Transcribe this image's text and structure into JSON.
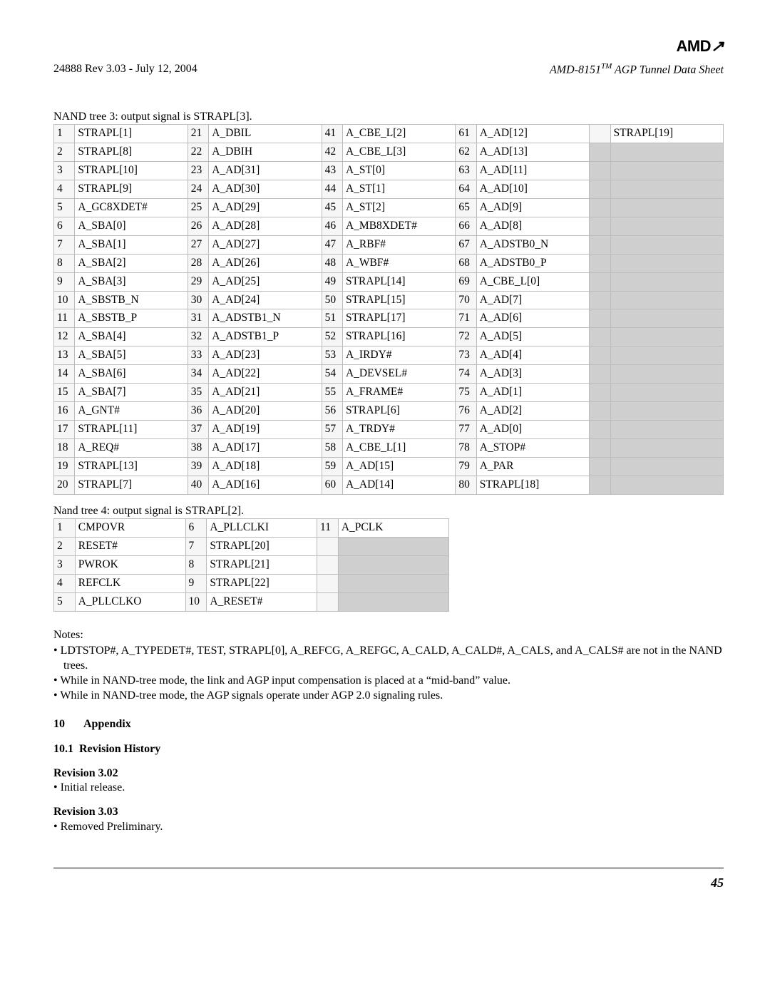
{
  "header": {
    "logo": "AMD",
    "rev": "24888 Rev 3.03 - July 12, 2004",
    "doc_prefix": "AMD-8151",
    "tm": "TM",
    "doc_suffix": " AGP Tunnel Data Sheet"
  },
  "table3": {
    "caption": "NAND tree 3: output signal is STRAPL[3].",
    "cols": 5,
    "rows": [
      [
        [
          "1",
          "STRAPL[1]"
        ],
        [
          "21",
          "A_DBIL"
        ],
        [
          "41",
          "A_CBE_L[2]"
        ],
        [
          "61",
          "A_AD[12]"
        ],
        [
          "",
          "STRAPL[19]"
        ]
      ],
      [
        [
          "2",
          "STRAPL[8]"
        ],
        [
          "22",
          "A_DBIH"
        ],
        [
          "42",
          "A_CBE_L[3]"
        ],
        [
          "62",
          "A_AD[13]"
        ],
        [
          "",
          ""
        ]
      ],
      [
        [
          "3",
          "STRAPL[10]"
        ],
        [
          "23",
          "A_AD[31]"
        ],
        [
          "43",
          "A_ST[0]"
        ],
        [
          "63",
          "A_AD[11]"
        ],
        [
          "",
          ""
        ]
      ],
      [
        [
          "4",
          "STRAPL[9]"
        ],
        [
          "24",
          "A_AD[30]"
        ],
        [
          "44",
          "A_ST[1]"
        ],
        [
          "64",
          "A_AD[10]"
        ],
        [
          "",
          ""
        ]
      ],
      [
        [
          "5",
          "A_GC8XDET#"
        ],
        [
          "25",
          "A_AD[29]"
        ],
        [
          "45",
          "A_ST[2]"
        ],
        [
          "65",
          "A_AD[9]"
        ],
        [
          "",
          ""
        ]
      ],
      [
        [
          "6",
          "A_SBA[0]"
        ],
        [
          "26",
          "A_AD[28]"
        ],
        [
          "46",
          "A_MB8XDET#"
        ],
        [
          "66",
          "A_AD[8]"
        ],
        [
          "",
          ""
        ]
      ],
      [
        [
          "7",
          "A_SBA[1]"
        ],
        [
          "27",
          "A_AD[27]"
        ],
        [
          "47",
          "A_RBF#"
        ],
        [
          "67",
          "A_ADSTB0_N"
        ],
        [
          "",
          ""
        ]
      ],
      [
        [
          "8",
          "A_SBA[2]"
        ],
        [
          "28",
          "A_AD[26]"
        ],
        [
          "48",
          "A_WBF#"
        ],
        [
          "68",
          "A_ADSTB0_P"
        ],
        [
          "",
          ""
        ]
      ],
      [
        [
          "9",
          "A_SBA[3]"
        ],
        [
          "29",
          "A_AD[25]"
        ],
        [
          "49",
          "STRAPL[14]"
        ],
        [
          "69",
          "A_CBE_L[0]"
        ],
        [
          "",
          ""
        ]
      ],
      [
        [
          "10",
          "A_SBSTB_N"
        ],
        [
          "30",
          "A_AD[24]"
        ],
        [
          "50",
          "STRAPL[15]"
        ],
        [
          "70",
          "A_AD[7]"
        ],
        [
          "",
          ""
        ]
      ],
      [
        [
          "11",
          "A_SBSTB_P"
        ],
        [
          "31",
          "A_ADSTB1_N"
        ],
        [
          "51",
          "STRAPL[17]"
        ],
        [
          "71",
          "A_AD[6]"
        ],
        [
          "",
          ""
        ]
      ],
      [
        [
          "12",
          "A_SBA[4]"
        ],
        [
          "32",
          "A_ADSTB1_P"
        ],
        [
          "52",
          "STRAPL[16]"
        ],
        [
          "72",
          "A_AD[5]"
        ],
        [
          "",
          ""
        ]
      ],
      [
        [
          "13",
          "A_SBA[5]"
        ],
        [
          "33",
          "A_AD[23]"
        ],
        [
          "53",
          "A_IRDY#"
        ],
        [
          "73",
          "A_AD[4]"
        ],
        [
          "",
          ""
        ]
      ],
      [
        [
          "14",
          "A_SBA[6]"
        ],
        [
          "34",
          "A_AD[22]"
        ],
        [
          "54",
          "A_DEVSEL#"
        ],
        [
          "74",
          "A_AD[3]"
        ],
        [
          "",
          ""
        ]
      ],
      [
        [
          "15",
          "A_SBA[7]"
        ],
        [
          "35",
          "A_AD[21]"
        ],
        [
          "55",
          "A_FRAME#"
        ],
        [
          "75",
          "A_AD[1]"
        ],
        [
          "",
          ""
        ]
      ],
      [
        [
          "16",
          "A_GNT#"
        ],
        [
          "36",
          "A_AD[20]"
        ],
        [
          "56",
          "STRAPL[6]"
        ],
        [
          "76",
          "A_AD[2]"
        ],
        [
          "",
          ""
        ]
      ],
      [
        [
          "17",
          "STRAPL[11]"
        ],
        [
          "37",
          "A_AD[19]"
        ],
        [
          "57",
          "A_TRDY#"
        ],
        [
          "77",
          "A_AD[0]"
        ],
        [
          "",
          ""
        ]
      ],
      [
        [
          "18",
          "A_REQ#"
        ],
        [
          "38",
          "A_AD[17]"
        ],
        [
          "58",
          "A_CBE_L[1]"
        ],
        [
          "78",
          "A_STOP#"
        ],
        [
          "",
          ""
        ]
      ],
      [
        [
          "19",
          "STRAPL[13]"
        ],
        [
          "39",
          "A_AD[18]"
        ],
        [
          "59",
          "A_AD[15]"
        ],
        [
          "79",
          "A_PAR"
        ],
        [
          "",
          ""
        ]
      ],
      [
        [
          "20",
          "STRAPL[7]"
        ],
        [
          "40",
          "A_AD[16]"
        ],
        [
          "60",
          "A_AD[14]"
        ],
        [
          "80",
          "STRAPL[18]"
        ],
        [
          "",
          ""
        ]
      ]
    ]
  },
  "table4": {
    "caption": "Nand tree 4: output signal is STRAPL[2].",
    "rows": [
      [
        [
          "1",
          "CMPOVR"
        ],
        [
          "6",
          "A_PLLCLKI"
        ],
        [
          "11",
          "A_PCLK"
        ]
      ],
      [
        [
          "2",
          "RESET#"
        ],
        [
          "7",
          "STRAPL[20]"
        ],
        [
          "",
          ""
        ]
      ],
      [
        [
          "3",
          "PWROK"
        ],
        [
          "8",
          "STRAPL[21]"
        ],
        [
          "",
          ""
        ]
      ],
      [
        [
          "4",
          "REFCLK"
        ],
        [
          "9",
          "STRAPL[22]"
        ],
        [
          "",
          ""
        ]
      ],
      [
        [
          "5",
          "A_PLLCLKO"
        ],
        [
          "10",
          "A_RESET#"
        ],
        [
          "",
          ""
        ]
      ]
    ]
  },
  "notes": {
    "heading": "Notes:",
    "items": [
      "LDTSTOP#, A_TYPEDET#, TEST, STRAPL[0], A_REFCG, A_REFGC, A_CALD, A_CALD#, A_CALS, and A_CALS# are not in the NAND trees.",
      "While in NAND-tree mode, the link and AGP input compensation is placed at a “mid-band” value.",
      "While in NAND-tree mode, the AGP signals operate under AGP 2.0 signaling rules."
    ]
  },
  "sections": {
    "appendix_num": "10",
    "appendix_title": "Appendix",
    "revhist_num": "10.1",
    "revhist_title": "Revision History",
    "rev302_h": "Revision 3.02",
    "rev302_item": "Initial release.",
    "rev303_h": "Revision 3.03",
    "rev303_item": "Removed Preliminary."
  },
  "page": "45"
}
